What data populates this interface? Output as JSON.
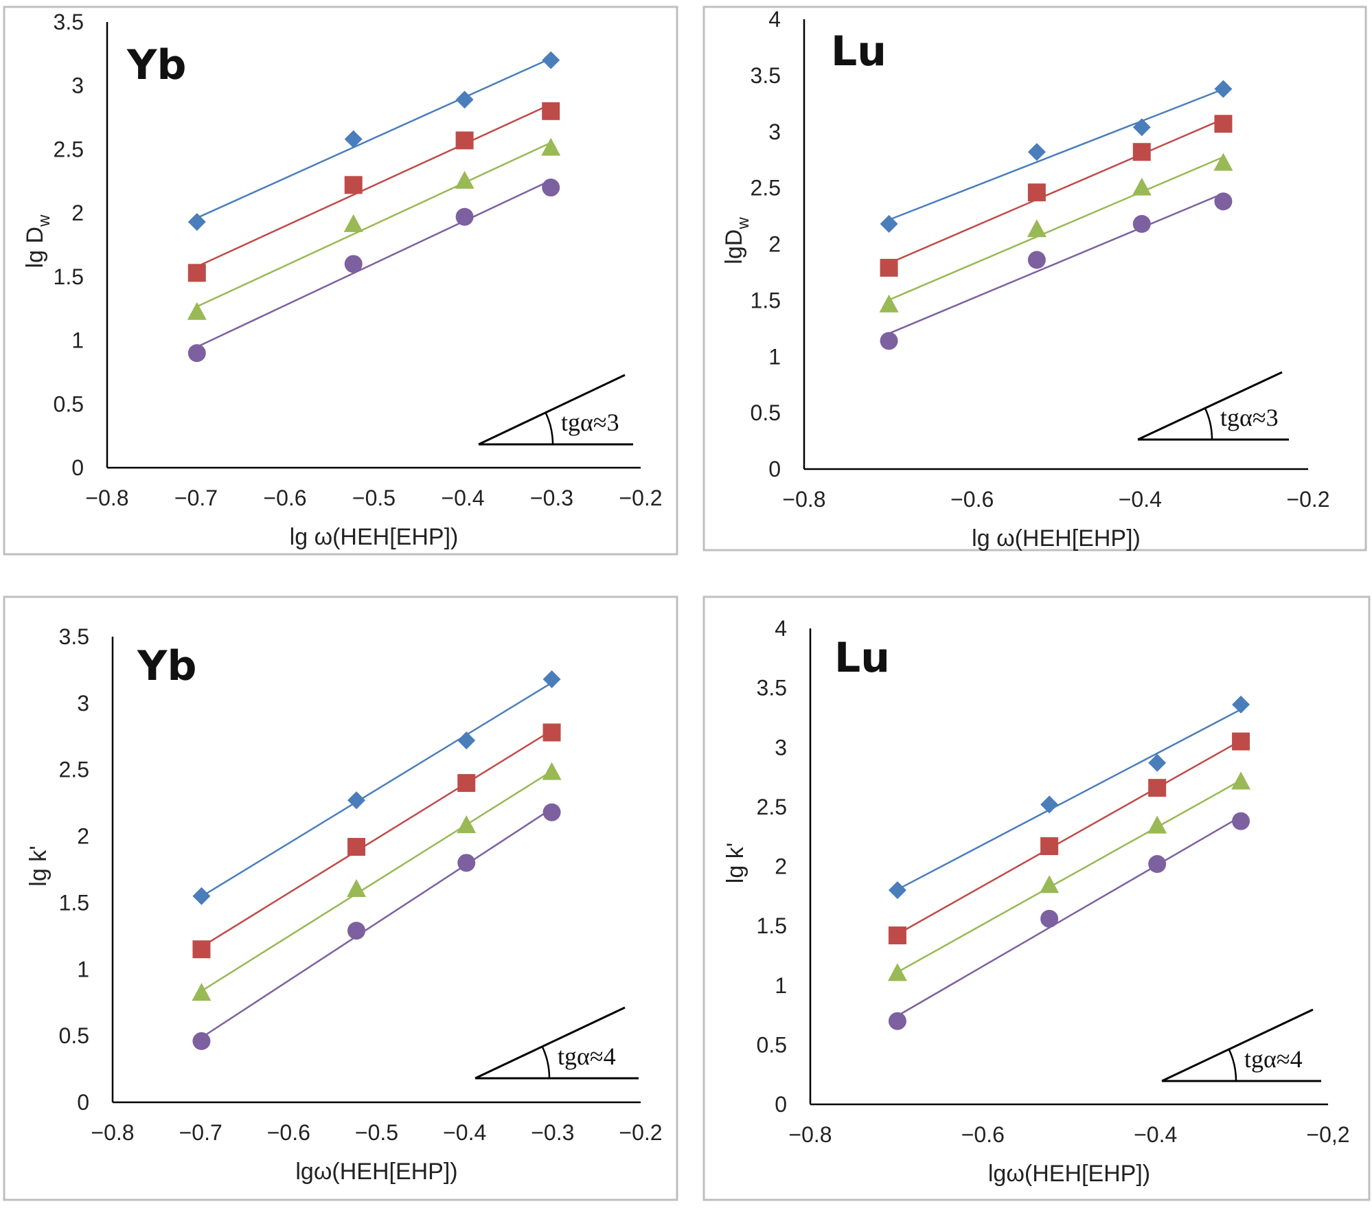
{
  "chart_data": [
    {
      "type": "scatter",
      "title": "Yb",
      "xlabel": "lg ω(HEH[EHP])",
      "ylabel_main": "lg D",
      "ylabel_sub": "w",
      "xlim": [
        -0.8,
        -0.2
      ],
      "ylim": [
        0,
        3.5
      ],
      "xticks": [
        "−0.8",
        "−0.7",
        "−0.6",
        "−0.5",
        "−0.4",
        "−0.3",
        "−0.2"
      ],
      "xtick_values": [
        -0.8,
        -0.7,
        -0.6,
        -0.5,
        -0.4,
        -0.3,
        -0.2
      ],
      "yticks": [
        "0",
        "0.5",
        "1",
        "1.5",
        "2",
        "2.5",
        "3",
        "3.5"
      ],
      "ytick_values": [
        0,
        0.5,
        1,
        1.5,
        2,
        2.5,
        3,
        3.5
      ],
      "annotation": "tgα≈3",
      "trendlines": "linear",
      "grid": false,
      "x": [
        -0.699,
        -0.523,
        -0.398,
        -0.301
      ],
      "series": [
        {
          "marker": "diamond",
          "color": "#4a7ebb",
          "values": [
            1.93,
            2.58,
            2.89,
            3.2
          ]
        },
        {
          "marker": "square",
          "color": "#be4b48",
          "values": [
            1.53,
            2.22,
            2.57,
            2.8
          ]
        },
        {
          "marker": "triangle",
          "color": "#98b954",
          "values": [
            1.22,
            1.91,
            2.25,
            2.51
          ]
        },
        {
          "marker": "circle",
          "color": "#7d60a0",
          "values": [
            0.9,
            1.6,
            1.97,
            2.2
          ]
        }
      ]
    },
    {
      "type": "scatter",
      "title": "Lu",
      "xlabel": "lg ω(HEH[EHP])",
      "ylabel_main": "lgD",
      "ylabel_sub": "w",
      "xlim": [
        -0.8,
        -0.2
      ],
      "ylim": [
        0,
        4
      ],
      "xticks": [
        "−0.8",
        "−0.6",
        "−0.4",
        "−0.2"
      ],
      "xtick_values": [
        -0.8,
        -0.6,
        -0.4,
        -0.2
      ],
      "yticks": [
        "0",
        "0.5",
        "1",
        "1.5",
        "2",
        "2.5",
        "3",
        "3.5",
        "4"
      ],
      "ytick_values": [
        0,
        0.5,
        1,
        1.5,
        2,
        2.5,
        3,
        3.5,
        4
      ],
      "annotation": "tgα≈3",
      "trendlines": "linear",
      "grid": false,
      "x": [
        -0.699,
        -0.523,
        -0.398,
        -0.301
      ],
      "series": [
        {
          "marker": "diamond",
          "color": "#4a7ebb",
          "values": [
            2.18,
            2.82,
            3.04,
            3.38
          ]
        },
        {
          "marker": "square",
          "color": "#be4b48",
          "values": [
            1.79,
            2.46,
            2.82,
            3.07
          ]
        },
        {
          "marker": "triangle",
          "color": "#98b954",
          "values": [
            1.46,
            2.13,
            2.5,
            2.72
          ]
        },
        {
          "marker": "circle",
          "color": "#7d60a0",
          "values": [
            1.14,
            1.86,
            2.18,
            2.38
          ]
        }
      ]
    },
    {
      "type": "scatter",
      "title": "Yb",
      "xlabel": "lgω(HEH[EHP])",
      "ylabel_main": "lg k'",
      "ylabel_sub": "",
      "xlim": [
        -0.8,
        -0.2
      ],
      "ylim": [
        0,
        3.5
      ],
      "xticks": [
        "−0.8",
        "−0.7",
        "−0.6",
        "−0.5",
        "−0.4",
        "−0.3",
        "−0.2"
      ],
      "xtick_values": [
        -0.8,
        -0.7,
        -0.6,
        -0.5,
        -0.4,
        -0.3,
        -0.2
      ],
      "yticks": [
        "0",
        "0.5",
        "1",
        "1.5",
        "2",
        "2.5",
        "3",
        "3.5"
      ],
      "ytick_values": [
        0,
        0.5,
        1,
        1.5,
        2,
        2.5,
        3,
        3.5
      ],
      "annotation": "tgα≈4",
      "trendlines": "linear",
      "grid": false,
      "x": [
        -0.699,
        -0.523,
        -0.398,
        -0.301
      ],
      "series": [
        {
          "marker": "diamond",
          "color": "#4a7ebb",
          "values": [
            1.55,
            2.27,
            2.72,
            3.18
          ]
        },
        {
          "marker": "square",
          "color": "#be4b48",
          "values": [
            1.15,
            1.92,
            2.4,
            2.78
          ]
        },
        {
          "marker": "triangle",
          "color": "#98b954",
          "values": [
            0.82,
            1.6,
            2.08,
            2.48
          ]
        },
        {
          "marker": "circle",
          "color": "#7d60a0",
          "values": [
            0.46,
            1.29,
            1.8,
            2.18
          ]
        }
      ]
    },
    {
      "type": "scatter",
      "title": "Lu",
      "xlabel": "lgω(HEH[EHP])",
      "ylabel_main": "lg k'",
      "ylabel_sub": "",
      "xlim": [
        -0.8,
        -0.2
      ],
      "ylim": [
        0,
        4
      ],
      "xticks": [
        "−0.8",
        "−0.6",
        "−0.4",
        "−0,2"
      ],
      "xtick_values": [
        -0.8,
        -0.6,
        -0.4,
        -0.2
      ],
      "yticks": [
        "0",
        "0.5",
        "1",
        "1.5",
        "2",
        "2.5",
        "3",
        "3.5",
        "4"
      ],
      "ytick_values": [
        0,
        0.5,
        1,
        1.5,
        2,
        2.5,
        3,
        3.5,
        4
      ],
      "annotation": "tgα≈4",
      "trendlines": "linear",
      "grid": false,
      "x": [
        -0.699,
        -0.523,
        -0.398,
        -0.301
      ],
      "series": [
        {
          "marker": "diamond",
          "color": "#4a7ebb",
          "values": [
            1.8,
            2.52,
            2.87,
            3.36
          ]
        },
        {
          "marker": "square",
          "color": "#be4b48",
          "values": [
            1.42,
            2.17,
            2.66,
            3.05
          ]
        },
        {
          "marker": "triangle",
          "color": "#98b954",
          "values": [
            1.1,
            1.84,
            2.34,
            2.71
          ]
        },
        {
          "marker": "circle",
          "color": "#7d60a0",
          "values": [
            0.7,
            1.56,
            2.02,
            2.38
          ]
        }
      ]
    }
  ]
}
